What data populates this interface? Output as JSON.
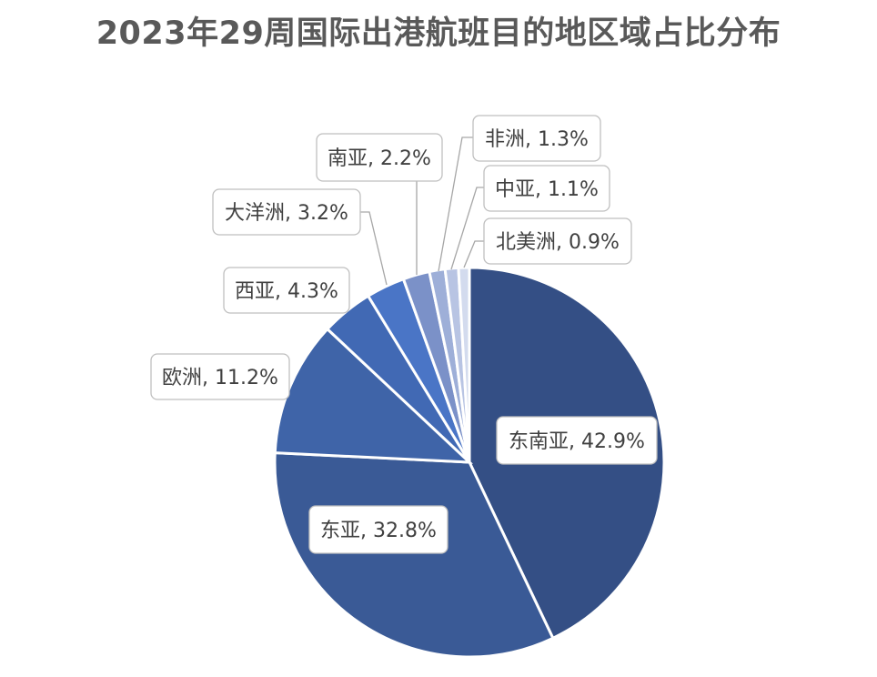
{
  "chart_data": {
    "type": "pie",
    "title": "2023年29周国际出港航班目的地区域占比分布",
    "unit": "%",
    "slices": [
      {
        "name": "东南亚",
        "value": 42.9,
        "label": "东南亚, 42.9%",
        "color": "#344f85"
      },
      {
        "name": "东亚",
        "value": 32.8,
        "label": "东亚, 32.8%",
        "color": "#3a5a96"
      },
      {
        "name": "欧洲",
        "value": 11.2,
        "label": "欧洲, 11.2%",
        "color": "#3f64a8"
      },
      {
        "name": "西亚",
        "value": 4.3,
        "label": "西亚, 4.3%",
        "color": "#4169b4"
      },
      {
        "name": "大洋洲",
        "value": 3.2,
        "label": "大洋洲, 3.2%",
        "color": "#4a75c6"
      },
      {
        "name": "南亚",
        "value": 2.2,
        "label": "南亚, 2.2%",
        "color": "#7b91c8"
      },
      {
        "name": "非洲",
        "value": 1.3,
        "label": "非洲, 1.3%",
        "color": "#9eafd8"
      },
      {
        "name": "中亚",
        "value": 1.1,
        "label": "中亚, 1.1%",
        "color": "#b8c4e3"
      },
      {
        "name": "北美洲",
        "value": 0.9,
        "label": "北美洲, 0.9%",
        "color": "#d3dbee"
      }
    ],
    "legend": "none",
    "start_angle": "12 o'clock",
    "direction": "clockwise"
  }
}
